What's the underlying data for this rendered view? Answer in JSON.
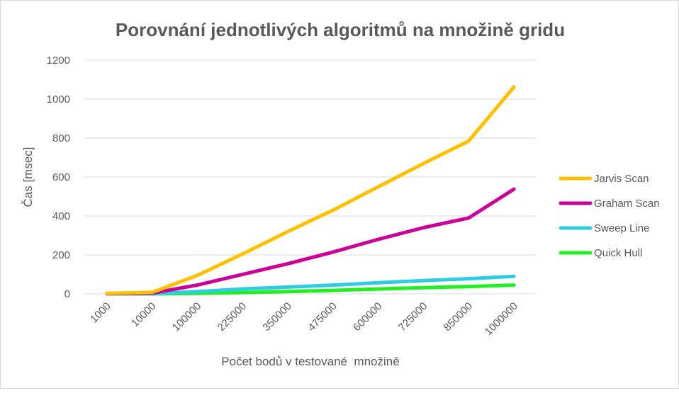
{
  "chart_data": {
    "type": "line",
    "title": "Porovnání jednotlivých algoritmů na množině gridu",
    "xlabel": "Počet bodů v testované  množině",
    "ylabel": "Čas [msec]",
    "categories": [
      "1000",
      "10000",
      "100000",
      "225000",
      "350000",
      "475000",
      "600000",
      "725000",
      "850000",
      "1000000"
    ],
    "ylim": [
      0,
      1200
    ],
    "yticks": [
      "0",
      "200",
      "400",
      "600",
      "800",
      "1000",
      "1200"
    ],
    "grid": true,
    "legend_position": "right",
    "series": [
      {
        "name": "Jarvis Scan",
        "color": "#FFC000",
        "values": [
          2,
          8,
          95,
          205,
          320,
          430,
          550,
          670,
          785,
          1062
        ]
      },
      {
        "name": "Graham Scan",
        "color": "#CC0099",
        "values": [
          1,
          4,
          45,
          100,
          155,
          215,
          280,
          340,
          390,
          538
        ]
      },
      {
        "name": "Sweep Line",
        "color": "#2ECCE0",
        "values": [
          0,
          1,
          12,
          25,
          35,
          45,
          57,
          68,
          78,
          90
        ]
      },
      {
        "name": "Quick Hull",
        "color": "#22EE22",
        "values": [
          0,
          0,
          3,
          7,
          12,
          18,
          25,
          32,
          38,
          45
        ]
      }
    ]
  }
}
